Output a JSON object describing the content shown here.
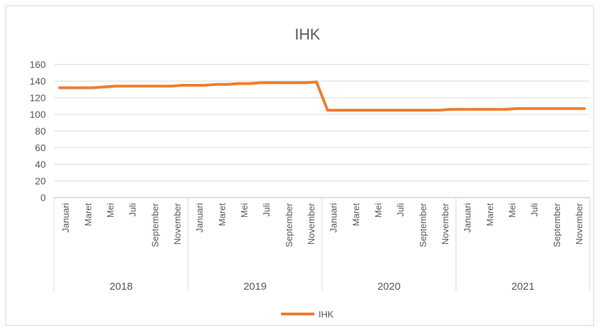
{
  "chart_data": {
    "type": "line",
    "title": "IHK",
    "xlabel": "",
    "ylabel": "",
    "ylim": [
      0,
      160
    ],
    "yticks": [
      0,
      20,
      40,
      60,
      80,
      100,
      120,
      140,
      160
    ],
    "grid": true,
    "legend": "bottom",
    "line_color": "#ED7D31",
    "groups": [
      {
        "label": "2018",
        "categories": [
          "Januari",
          "Maret",
          "Mei",
          "Juli",
          "September",
          "November"
        ]
      },
      {
        "label": "2019",
        "categories": [
          "Januari",
          "Maret",
          "Mei",
          "Juli",
          "September",
          "November"
        ]
      },
      {
        "label": "2020",
        "categories": [
          "Januari",
          "Maret",
          "Mei",
          "Juli",
          "September",
          "November"
        ]
      },
      {
        "label": "2021",
        "categories": [
          "Januari",
          "Maret",
          "Mei",
          "Juli",
          "September",
          "November"
        ]
      }
    ],
    "series": [
      {
        "name": "IHK",
        "values": [
          132,
          132,
          132,
          132,
          133,
          134,
          134,
          134,
          134,
          134,
          134,
          135,
          135,
          135,
          136,
          136,
          137,
          137,
          138,
          138,
          138,
          138,
          138,
          139,
          105,
          105,
          105,
          105,
          105,
          105,
          105,
          105,
          105,
          105,
          105,
          106,
          106,
          106,
          106,
          106,
          106,
          107,
          107,
          107,
          107,
          107,
          107,
          107
        ]
      }
    ]
  }
}
